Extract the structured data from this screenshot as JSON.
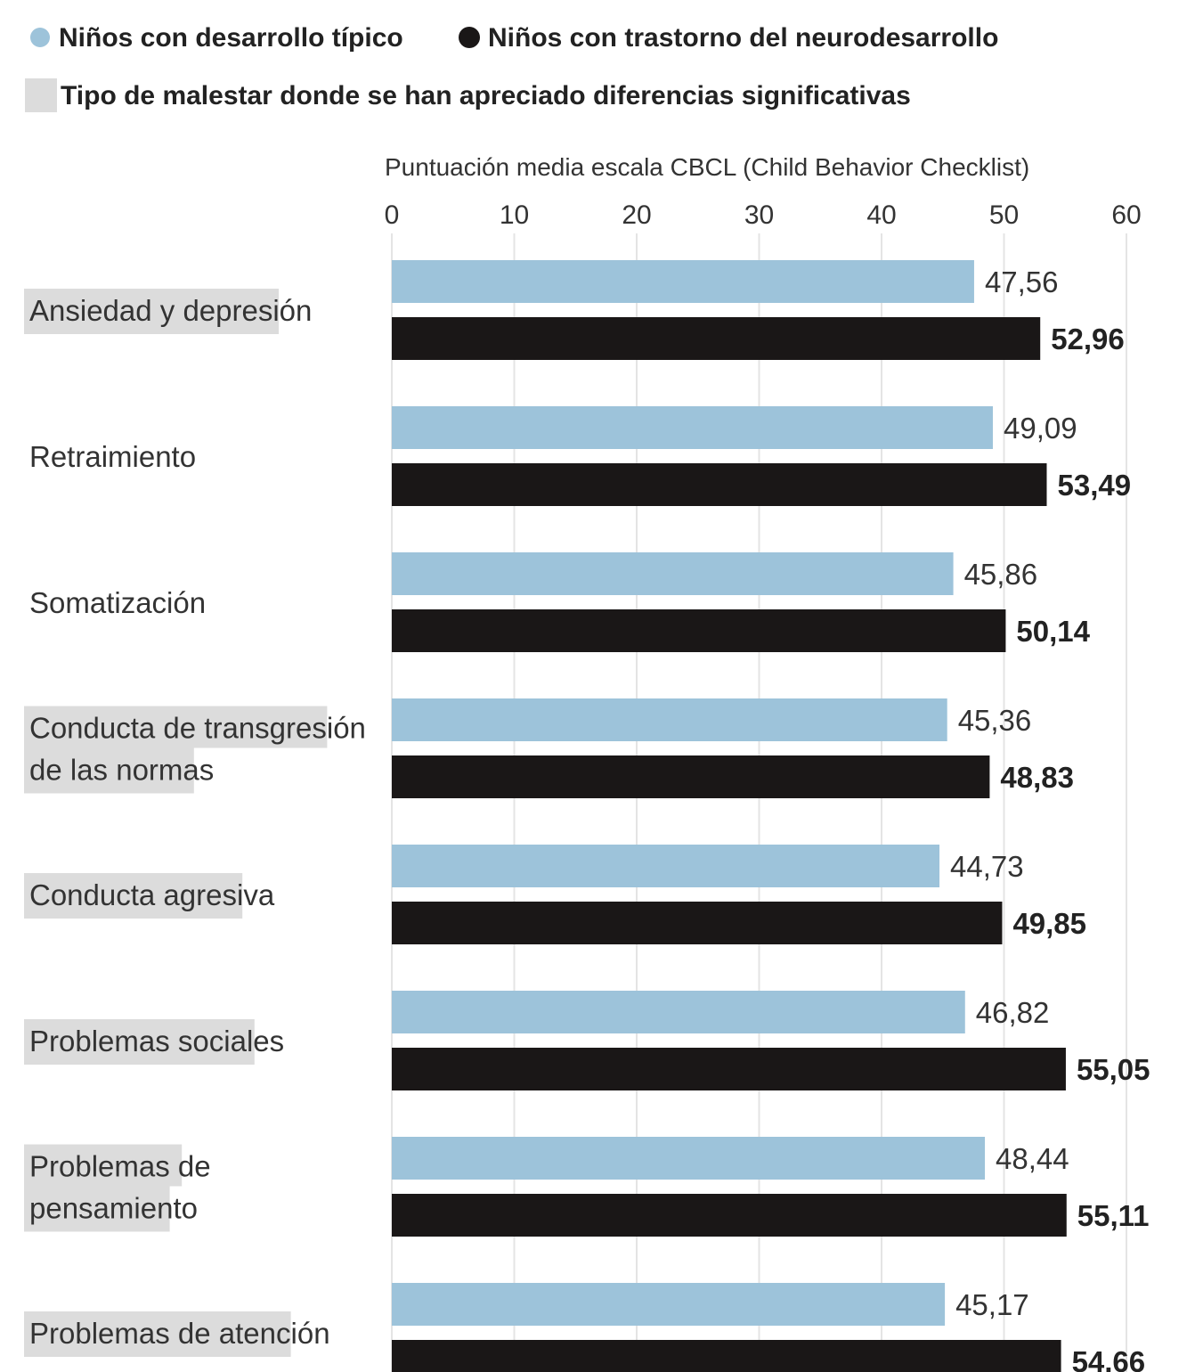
{
  "colors": {
    "typical": "#9dc3da",
    "disorder": "#1a1717",
    "highlight": "#dcdcdc",
    "grid": "#e4e4e4"
  },
  "legend": {
    "typical_label": "Niños con desarrollo típico",
    "disorder_label": "Niños con trastorno del neurodesarrollo",
    "highlight_label": "Tipo de malestar donde se han apreciado diferencias significativas"
  },
  "chart_data": {
    "type": "bar",
    "orientation": "horizontal",
    "xlabel": "Puntuación media escala CBCL (Child Behavior Checklist)",
    "xlim": [
      0,
      60
    ],
    "xticks": [
      0,
      10,
      20,
      30,
      40,
      50,
      60
    ],
    "grid": true,
    "legend_position": "top",
    "categories": [
      {
        "lines": [
          "Ansiedad y depresión"
        ],
        "significant": true
      },
      {
        "lines": [
          "Retraimiento"
        ],
        "significant": false
      },
      {
        "lines": [
          "Somatización"
        ],
        "significant": false
      },
      {
        "lines": [
          "Conducta de transgresión",
          "de las normas"
        ],
        "significant": true
      },
      {
        "lines": [
          "Conducta agresiva"
        ],
        "significant": true
      },
      {
        "lines": [
          "Problemas sociales"
        ],
        "significant": true
      },
      {
        "lines": [
          "Problemas de",
          "pensamiento"
        ],
        "significant": true
      },
      {
        "lines": [
          "Problemas de atención"
        ],
        "significant": true
      }
    ],
    "series": [
      {
        "name": "Niños con desarrollo típico",
        "values": [
          47.56,
          49.09,
          45.86,
          45.36,
          44.73,
          46.82,
          48.44,
          45.17
        ],
        "labels": [
          "47,56",
          "49,09",
          "45,86",
          "45,36",
          "44,73",
          "46,82",
          "48,44",
          "45,17"
        ]
      },
      {
        "name": "Niños con trastorno del neurodesarrollo",
        "values": [
          52.96,
          53.49,
          50.14,
          48.83,
          49.85,
          55.05,
          55.11,
          54.66
        ],
        "labels": [
          "52,96",
          "53,49",
          "50,14",
          "48,83",
          "49,85",
          "55,05",
          "55,11",
          "54,66"
        ]
      }
    ]
  }
}
